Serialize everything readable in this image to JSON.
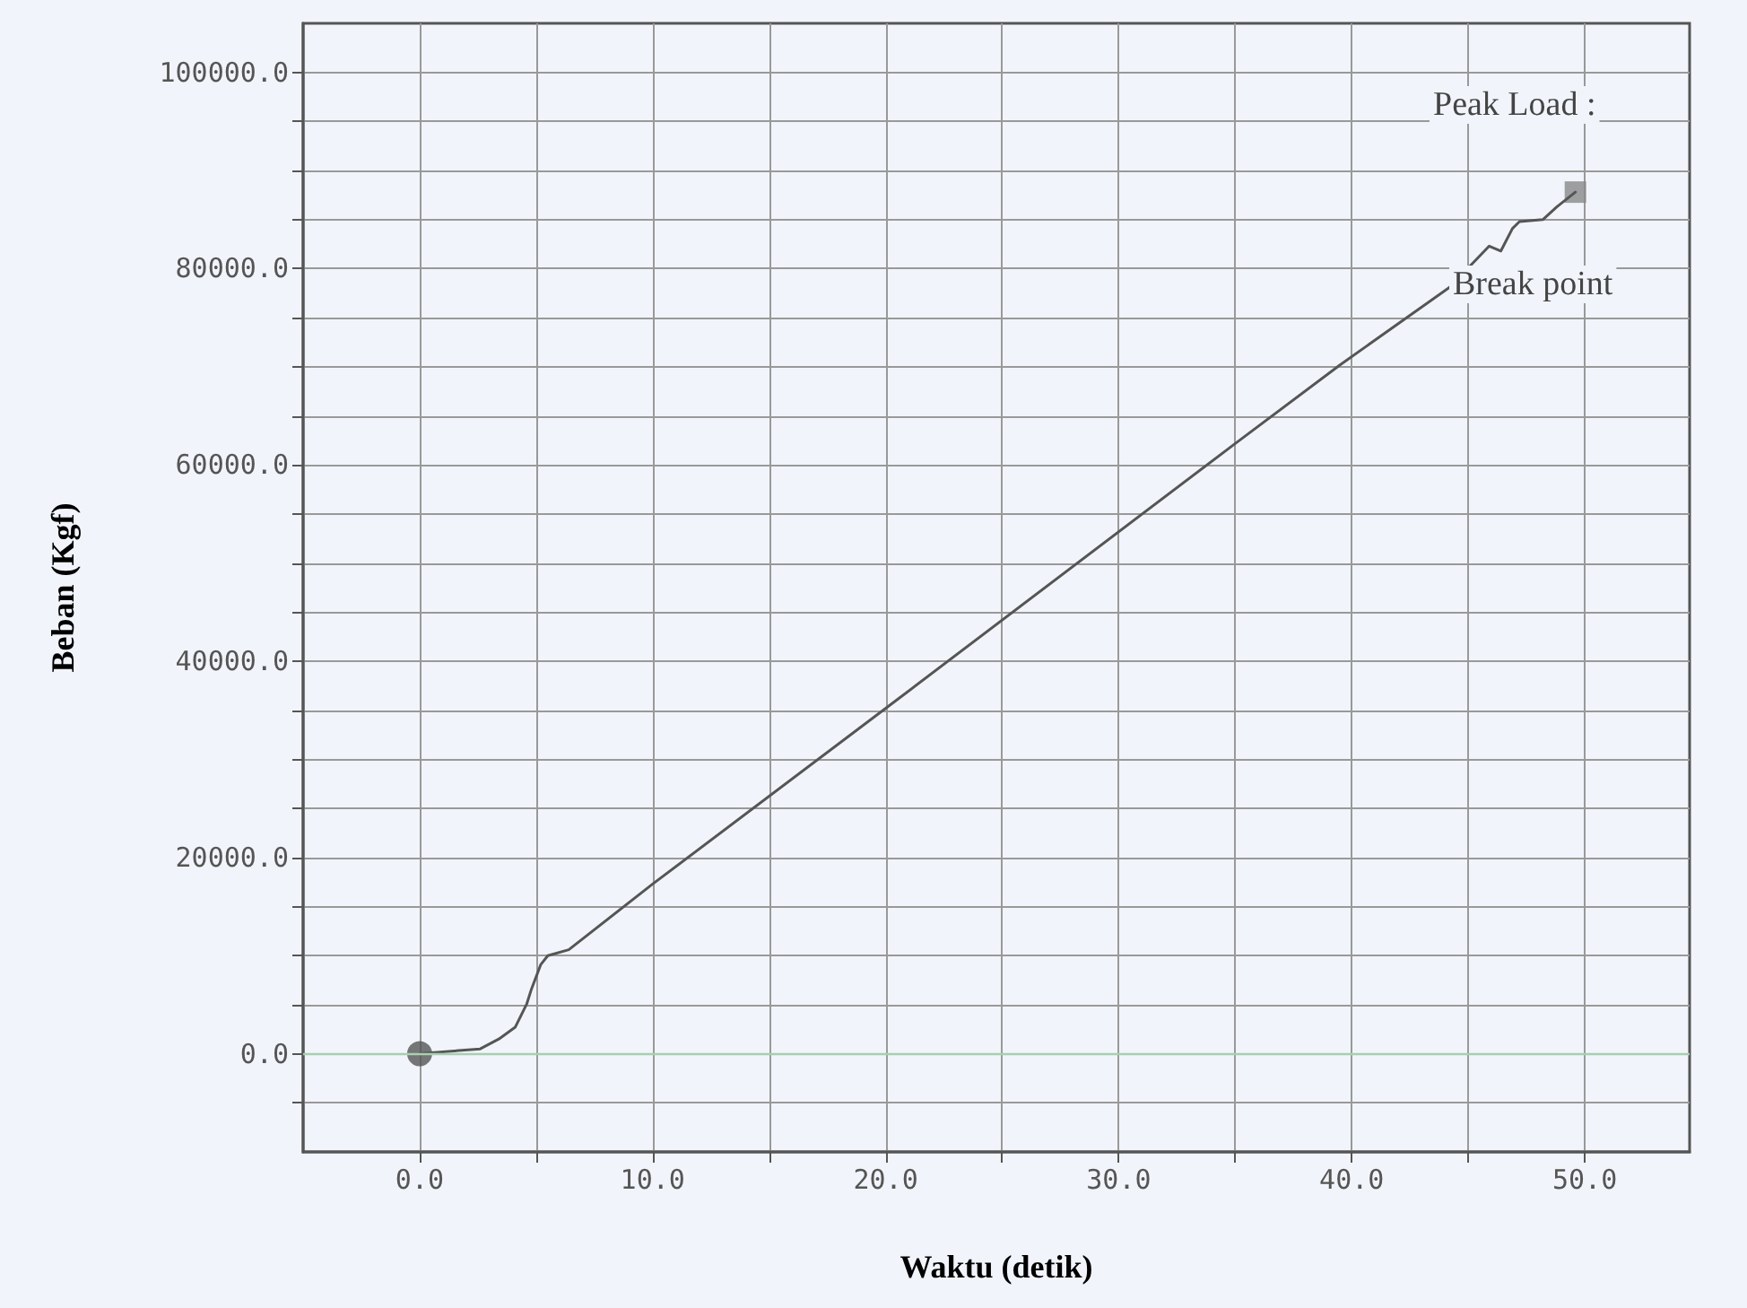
{
  "chart_data": {
    "type": "line",
    "xlabel": "Waktu (detik)",
    "ylabel": "Beban (Kgf)",
    "xlim": [
      -5,
      54.5
    ],
    "xticks": [
      {
        "value": 0,
        "label": "0.0"
      },
      {
        "value": 5,
        "label": null
      },
      {
        "value": 10,
        "label": "10.0"
      },
      {
        "value": 15,
        "label": null
      },
      {
        "value": 20,
        "label": "20.0"
      },
      {
        "value": 25,
        "label": null
      },
      {
        "value": 30,
        "label": "30.0"
      },
      {
        "value": 35,
        "label": null
      },
      {
        "value": 40,
        "label": "40.0"
      },
      {
        "value": 45,
        "label": null
      },
      {
        "value": 50,
        "label": "50.0"
      }
    ],
    "ylim": [
      -10000,
      105000
    ],
    "yticks": [
      {
        "value": -5000,
        "label": null
      },
      {
        "value": 0,
        "label": "0.0"
      },
      {
        "value": 5000,
        "label": null
      },
      {
        "value": 10000,
        "label": null
      },
      {
        "value": 15000,
        "label": null
      },
      {
        "value": 20000,
        "label": "20000.0"
      },
      {
        "value": 25000,
        "label": null
      },
      {
        "value": 30000,
        "label": null
      },
      {
        "value": 35000,
        "label": null
      },
      {
        "value": 40000,
        "label": "40000.0"
      },
      {
        "value": 45000,
        "label": null
      },
      {
        "value": 50000,
        "label": null
      },
      {
        "value": 55000,
        "label": null
      },
      {
        "value": 60000,
        "label": "60000.0"
      },
      {
        "value": 65000,
        "label": null
      },
      {
        "value": 70000,
        "label": null
      },
      {
        "value": 75000,
        "label": null
      },
      {
        "value": 80000,
        "label": "80000.0"
      },
      {
        "value": 85000,
        "label": null
      },
      {
        "value": 90000,
        "label": null
      },
      {
        "value": 95000,
        "label": null
      },
      {
        "value": 100000,
        "label": "100000.0"
      }
    ],
    "grid": true,
    "line_style": "solid",
    "series": [
      {
        "marker": "none",
        "color": "#555555",
        "x": [
          0,
          2.6,
          3.4,
          4.1,
          4.6,
          4.8,
          5.2,
          5.5,
          6.4,
          10.0,
          20.5,
          34.9,
          39.5,
          44.2,
          45.9,
          46.4,
          46.9,
          47.2,
          48.2,
          48.8,
          49.6
        ],
        "values": [
          0,
          500,
          1500,
          2700,
          5100,
          6600,
          9100,
          10000,
          10600,
          17300,
          36100,
          62000,
          70200,
          78100,
          82300,
          81800,
          84100,
          84800,
          85000,
          86300,
          87800
        ]
      },
      {
        "type": "scatter",
        "marker": "circle",
        "color": "#555555",
        "x": [
          0
        ],
        "values": [
          0
        ]
      },
      {
        "type": "scatter",
        "marker": "square",
        "color": "#888888",
        "x": [
          49.6
        ],
        "values": [
          87800
        ]
      }
    ],
    "ref_lines": [
      {
        "axis": "y",
        "value": 0,
        "color": "#a8cfae"
      }
    ],
    "annotations": [
      "Peak Load :",
      "Break point"
    ]
  }
}
